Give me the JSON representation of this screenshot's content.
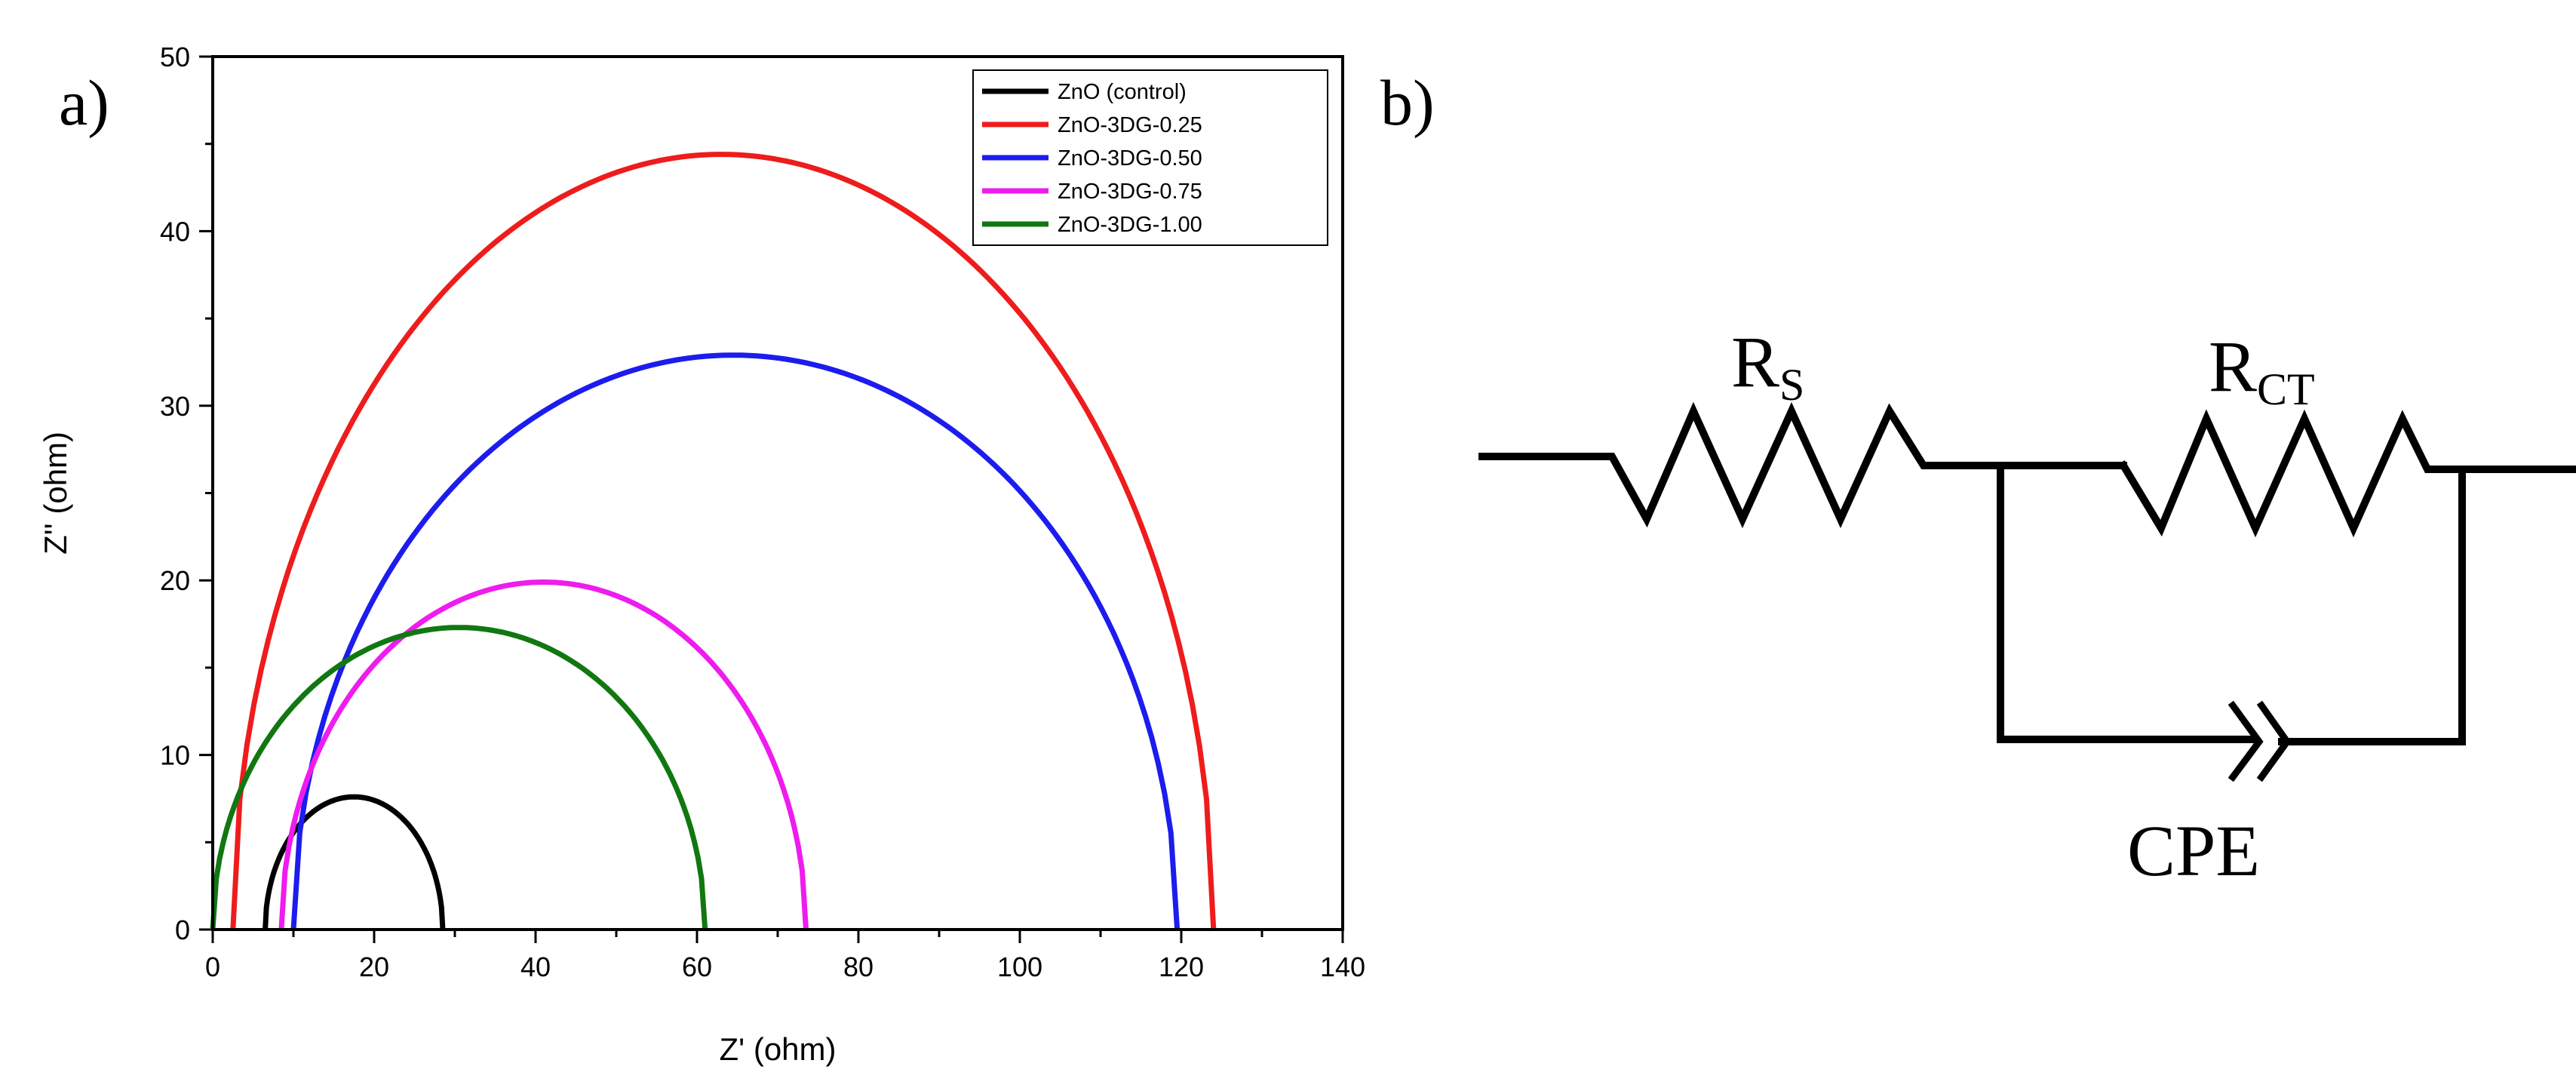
{
  "panels": {
    "a": "a)",
    "b": "b)"
  },
  "chart_data": {
    "type": "line",
    "title": "",
    "xlabel": "Z' (ohm)",
    "ylabel": "Z'' (ohm)",
    "xlim": [
      0,
      140
    ],
    "ylim": [
      0,
      50
    ],
    "xticks": [
      0,
      20,
      40,
      60,
      80,
      100,
      120,
      140
    ],
    "yticks": [
      0,
      10,
      20,
      30,
      40,
      50
    ],
    "grid": false,
    "legend_position": "top-right",
    "series": [
      {
        "name": "ZnO (control)",
        "color": "#000000",
        "x_start": 6.5,
        "x_end": 28.5,
        "peak_x": 17.5,
        "peak_y": 7.6
      },
      {
        "name": "ZnO-3DG-0.25",
        "color": "#ee1c1c",
        "x_start": 2.5,
        "x_end": 124,
        "peak_x": 63,
        "peak_y": 44.4
      },
      {
        "name": "ZnO-3DG-0.50",
        "color": "#1c1cee",
        "x_start": 10,
        "x_end": 119.5,
        "peak_x": 64.5,
        "peak_y": 32.9
      },
      {
        "name": "ZnO-3DG-0.75",
        "color": "#ee1cee",
        "x_start": 8.5,
        "x_end": 73.5,
        "peak_x": 41,
        "peak_y": 19.9
      },
      {
        "name": "ZnO-3DG-1.00",
        "color": "#117711",
        "x_start": 0,
        "x_end": 61,
        "peak_x": 30.5,
        "peak_y": 17.3
      }
    ]
  },
  "circuit": {
    "rs_main": "R",
    "rs_sub": "S",
    "rct_main": "R",
    "rct_sub": "CT",
    "cpe_label": "CPE"
  }
}
